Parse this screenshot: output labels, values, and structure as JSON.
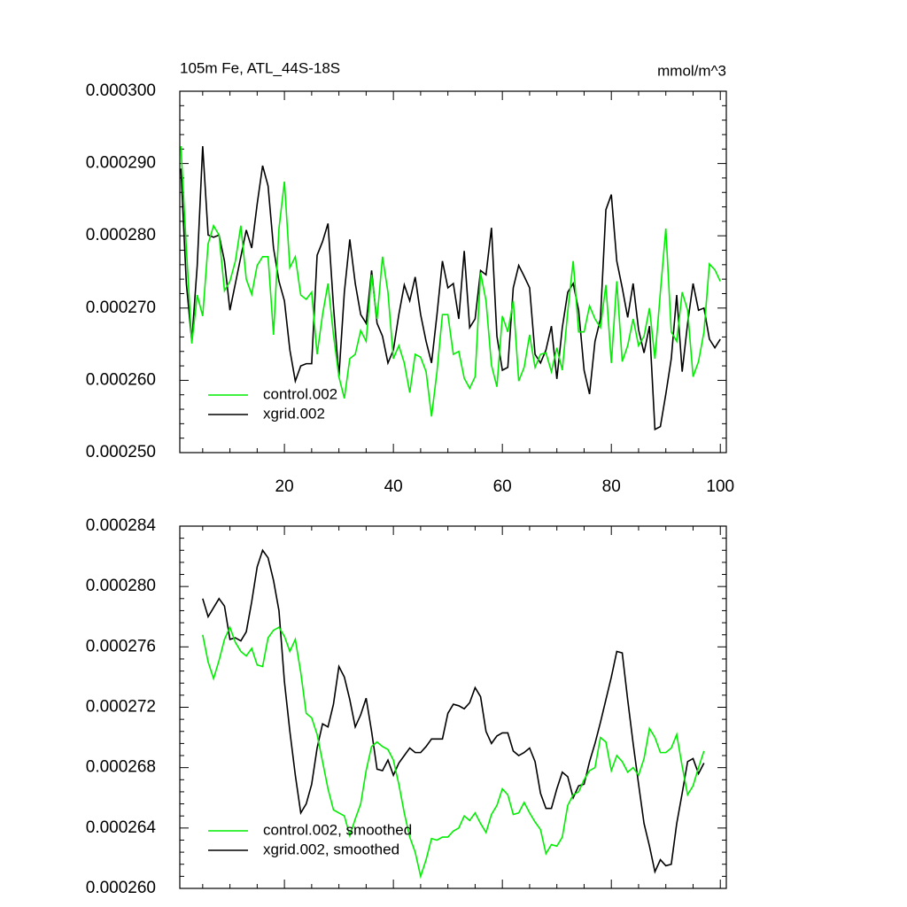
{
  "chart_data": [
    {
      "type": "line",
      "title": "105m Fe, ATL_44S-18S",
      "units": "mmol/m^3",
      "x": [
        1,
        2,
        3,
        4,
        5,
        6,
        7,
        8,
        9,
        10,
        11,
        12,
        13,
        14,
        15,
        16,
        17,
        18,
        19,
        20,
        21,
        22,
        23,
        24,
        25,
        26,
        27,
        28,
        29,
        30,
        31,
        32,
        33,
        34,
        35,
        36,
        37,
        38,
        39,
        40,
        41,
        42,
        43,
        44,
        45,
        46,
        47,
        48,
        49,
        50,
        51,
        52,
        53,
        54,
        55,
        56,
        57,
        58,
        59,
        60,
        61,
        62,
        63,
        64,
        65,
        66,
        67,
        68,
        69,
        70,
        71,
        72,
        73,
        74,
        75,
        76,
        77,
        78,
        79,
        80,
        81,
        82,
        83,
        84,
        85,
        86,
        87,
        88,
        89,
        90,
        91,
        92,
        93,
        94,
        95,
        96,
        97,
        98,
        99,
        100
      ],
      "series": [
        {
          "name": "xgrid.002",
          "color": "#000000",
          "values": [
            0.0002893,
            0.0002734,
            0.0002654,
            0.0002759,
            0.0002924,
            0.0002801,
            0.0002798,
            0.0002801,
            0.0002765,
            0.0002697,
            0.0002734,
            0.0002771,
            0.0002808,
            0.0002783,
            0.0002844,
            0.0002897,
            0.0002869,
            0.0002783,
            0.0002737,
            0.000271,
            0.0002642,
            0.0002599,
            0.000262,
            0.0002623,
            0.0002623,
            0.0002773,
            0.0002792,
            0.0002817,
            0.0002703,
            0.0002605,
            0.0002722,
            0.0002795,
            0.0002734,
            0.0002691,
            0.0002679,
            0.0002752,
            0.0002679,
            0.0002661,
            0.0002624,
            0.0002642,
            0.0002691,
            0.0002732,
            0.000271,
            0.0002743,
            0.0002691,
            0.0002654,
            0.0002624,
            0.0002691,
            0.0002765,
            0.0002728,
            0.0002734,
            0.0002685,
            0.0002779,
            0.0002673,
            0.0002685,
            0.0002752,
            0.0002746,
            0.0002811,
            0.0002661,
            0.0002614,
            0.0002618,
            0.0002728,
            0.0002759,
            0.0002744,
            0.0002728,
            0.0002636,
            0.0002624,
            0.0002642,
            0.0002675,
            0.0002602,
            0.0002673,
            0.0002722,
            0.0002734,
            0.0002697,
            0.0002614,
            0.0002581,
            0.0002654,
            0.0002685,
            0.0002836,
            0.0002857,
            0.0002765,
            0.0002728,
            0.0002687,
            0.0002734,
            0.000267,
            0.0002638,
            0.0002675,
            0.0002532,
            0.0002536,
            0.0002581,
            0.000263,
            0.0002718,
            0.0002612,
            0.0002679,
            0.0002734,
            0.0002697,
            0.00027,
            0.0002657,
            0.0002645,
            0.0002657
          ]
        },
        {
          "name": "control.002",
          "color": "#00ee00",
          "values": [
            0.0002924,
            0.0002783,
            0.0002651,
            0.0002718,
            0.0002689,
            0.0002789,
            0.0002814,
            0.0002801,
            0.0002724,
            0.0002737,
            0.0002765,
            0.0002814,
            0.000274,
            0.0002719,
            0.0002759,
            0.0002771,
            0.0002771,
            0.0002663,
            0.000281,
            0.0002875,
            0.0002756,
            0.0002771,
            0.0002718,
            0.0002712,
            0.0002722,
            0.0002636,
            0.0002691,
            0.0002734,
            0.0002663,
            0.0002605,
            0.0002575,
            0.000263,
            0.0002636,
            0.0002669,
            0.0002654,
            0.0002746,
            0.0002685,
            0.0002771,
            0.0002722,
            0.000263,
            0.0002648,
            0.0002624,
            0.0002583,
            0.0002636,
            0.0002632,
            0.0002612,
            0.000255,
            0.0002612,
            0.0002691,
            0.0002691,
            0.0002636,
            0.000264,
            0.0002603,
            0.0002589,
            0.0002605,
            0.0002749,
            0.000271,
            0.0002621,
            0.0002591,
            0.0002689,
            0.0002667,
            0.000271,
            0.0002599,
            0.0002618,
            0.0002663,
            0.0002618,
            0.0002636,
            0.0002638,
            0.0002612,
            0.0002645,
            0.0002614,
            0.0002695,
            0.0002765,
            0.0002667,
            0.0002667,
            0.0002703,
            0.0002685,
            0.0002673,
            0.0002732,
            0.0002624,
            0.0002737,
            0.0002626,
            0.0002648,
            0.0002685,
            0.0002648,
            0.0002661,
            0.00027,
            0.000263,
            0.0002722,
            0.000281,
            0.0002667,
            0.0002654,
            0.0002722,
            0.0002697,
            0.0002605,
            0.0002626,
            0.0002667,
            0.0002761,
            0.0002753,
            0.0002737
          ]
        }
      ],
      "xlim": [
        0.8,
        101.1
      ],
      "xticks": [
        20,
        40,
        60,
        80,
        100
      ],
      "ylim": [
        0.00025,
        0.0003
      ],
      "yticks": [
        {
          "value": 0.00025,
          "label": "0.000250"
        },
        {
          "value": 0.00026,
          "label": "0.000260"
        },
        {
          "value": 0.00027,
          "label": "0.000270"
        },
        {
          "value": 0.00028,
          "label": "0.000280"
        },
        {
          "value": 0.00029,
          "label": "0.000290"
        },
        {
          "value": 0.0003,
          "label": "0.000300"
        }
      ],
      "legend": "lower left"
    },
    {
      "type": "line",
      "x": [
        5,
        6,
        7,
        8,
        9,
        10,
        11,
        12,
        13,
        14,
        15,
        16,
        17,
        18,
        19,
        20,
        21,
        22,
        23,
        24,
        25,
        26,
        27,
        28,
        29,
        30,
        31,
        32,
        33,
        34,
        35,
        36,
        37,
        38,
        39,
        40,
        41,
        42,
        43,
        44,
        45,
        46,
        47,
        48,
        49,
        50,
        51,
        52,
        53,
        54,
        55,
        56,
        57,
        58,
        59,
        60,
        61,
        62,
        63,
        64,
        65,
        66,
        67,
        68,
        69,
        70,
        71,
        72,
        73,
        74,
        75,
        76,
        77,
        78,
        79,
        80,
        81,
        82,
        83,
        84,
        85,
        86,
        87,
        88,
        89,
        90,
        91,
        92,
        93,
        94,
        95,
        96,
        97
      ],
      "series": [
        {
          "name": "xgrid.002, smoothed",
          "color": "#000000",
          "values": [
            0.0002792,
            0.000278,
            0.0002786,
            0.0002792,
            0.0002787,
            0.0002765,
            0.0002766,
            0.0002764,
            0.000277,
            0.000279,
            0.0002813,
            0.0002824,
            0.0002819,
            0.0002804,
            0.0002784,
            0.0002737,
            0.0002704,
            0.0002675,
            0.000265,
            0.0002656,
            0.0002669,
            0.0002693,
            0.0002709,
            0.0002707,
            0.0002722,
            0.0002747,
            0.000274,
            0.0002725,
            0.0002707,
            0.0002715,
            0.0002726,
            0.0002704,
            0.0002679,
            0.0002678,
            0.0002685,
            0.0002675,
            0.0002683,
            0.0002688,
            0.0002693,
            0.000269,
            0.000269,
            0.0002694,
            0.0002699,
            0.0002699,
            0.0002699,
            0.0002716,
            0.0002722,
            0.0002721,
            0.0002719,
            0.0002723,
            0.0002733,
            0.0002727,
            0.0002704,
            0.0002696,
            0.0002701,
            0.0002703,
            0.0002703,
            0.0002691,
            0.0002688,
            0.000269,
            0.0002693,
            0.0002684,
            0.0002663,
            0.0002653,
            0.0002653,
            0.0002666,
            0.0002677,
            0.0002674,
            0.000266,
            0.0002668,
            0.0002669,
            0.0002684,
            0.0002696,
            0.000271,
            0.0002725,
            0.000274,
            0.0002757,
            0.0002756,
            0.0002725,
            0.0002696,
            0.0002669,
            0.0002643,
            0.0002628,
            0.0002611,
            0.0002619,
            0.0002615,
            0.0002616,
            0.0002643,
            0.0002663,
            0.0002684,
            0.0002686,
            0.0002676,
            0.0002683
          ]
        },
        {
          "name": "control.002, smoothed",
          "color": "#00ee00",
          "values": [
            0.0002768,
            0.000275,
            0.0002739,
            0.0002751,
            0.0002765,
            0.0002773,
            0.0002763,
            0.0002757,
            0.0002754,
            0.0002759,
            0.0002748,
            0.0002747,
            0.0002766,
            0.0002771,
            0.0002773,
            0.0002767,
            0.0002757,
            0.0002765,
            0.0002743,
            0.0002716,
            0.0002713,
            0.0002702,
            0.0002684,
            0.0002666,
            0.0002652,
            0.000265,
            0.0002648,
            0.0002635,
            0.0002646,
            0.0002656,
            0.0002678,
            0.0002694,
            0.0002697,
            0.0002694,
            0.0002692,
            0.0002685,
            0.0002669,
            0.000265,
            0.0002634,
            0.0002624,
            0.0002608,
            0.0002619,
            0.0002633,
            0.0002632,
            0.0002634,
            0.0002634,
            0.0002638,
            0.000264,
            0.0002648,
            0.0002645,
            0.000265,
            0.0002643,
            0.0002637,
            0.0002649,
            0.0002655,
            0.0002666,
            0.0002662,
            0.0002649,
            0.000265,
            0.0002657,
            0.000265,
            0.0002644,
            0.0002639,
            0.0002623,
            0.0002629,
            0.0002628,
            0.0002634,
            0.0002655,
            0.0002662,
            0.0002664,
            0.0002672,
            0.0002678,
            0.000268,
            0.00027,
            0.0002697,
            0.0002678,
            0.0002688,
            0.0002684,
            0.0002677,
            0.000268,
            0.0002675,
            0.0002686,
            0.0002706,
            0.00027,
            0.000269,
            0.000269,
            0.0002693,
            0.0002702,
            0.0002681,
            0.0002662,
            0.0002668,
            0.000268,
            0.0002691
          ]
        }
      ],
      "xlim": [
        0.8,
        101.1
      ],
      "xticks": [
        20,
        40,
        60,
        80,
        100
      ],
      "show_xtick_labels": false,
      "ylim": [
        0.00026,
        0.000284
      ],
      "yticks": [
        {
          "value": 0.00026,
          "label": "0.000260"
        },
        {
          "value": 0.000264,
          "label": "0.000264"
        },
        {
          "value": 0.000268,
          "label": "0.000268"
        },
        {
          "value": 0.000272,
          "label": "0.000272"
        },
        {
          "value": 0.000276,
          "label": "0.000276"
        },
        {
          "value": 0.00028,
          "label": "0.000280"
        },
        {
          "value": 0.000284,
          "label": "0.000284"
        }
      ],
      "legend": "lower left"
    }
  ]
}
